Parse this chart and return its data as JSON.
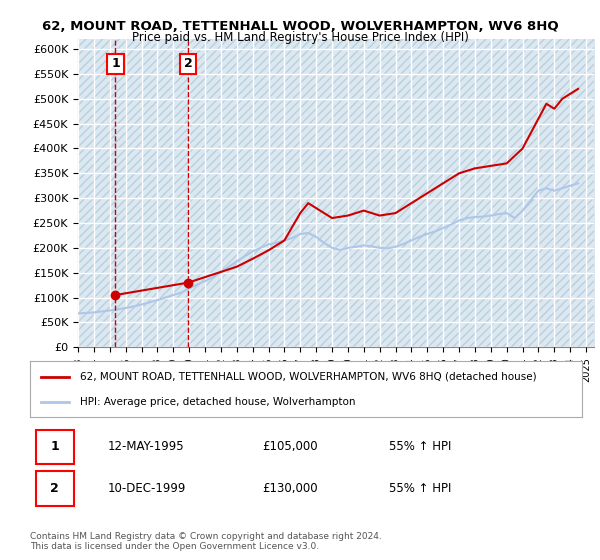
{
  "title": "62, MOUNT ROAD, TETTENHALL WOOD, WOLVERHAMPTON, WV6 8HQ",
  "subtitle": "Price paid vs. HM Land Registry's House Price Index (HPI)",
  "ylabel": "",
  "ylim": [
    0,
    620000
  ],
  "yticks": [
    0,
    50000,
    100000,
    150000,
    200000,
    250000,
    300000,
    350000,
    400000,
    450000,
    500000,
    550000,
    600000
  ],
  "ytick_labels": [
    "£0",
    "£50K",
    "£100K",
    "£150K",
    "£200K",
    "£250K",
    "£300K",
    "£350K",
    "£400K",
    "£450K",
    "£500K",
    "£550K",
    "£600K"
  ],
  "xlim_start": 1993.0,
  "xlim_end": 2025.5,
  "xticks": [
    1993,
    1994,
    1995,
    1996,
    1997,
    1998,
    1999,
    2000,
    2001,
    2002,
    2003,
    2004,
    2005,
    2006,
    2007,
    2008,
    2009,
    2010,
    2011,
    2012,
    2013,
    2014,
    2015,
    2016,
    2017,
    2018,
    2019,
    2020,
    2021,
    2022,
    2023,
    2024,
    2025
  ],
  "hpi_color": "#aec6e8",
  "property_color": "#cc0000",
  "sale1_x": 1995.36,
  "sale1_y": 105000,
  "sale1_label": "1",
  "sale2_x": 1999.94,
  "sale2_y": 130000,
  "sale2_label": "2",
  "legend_property": "62, MOUNT ROAD, TETTENHALL WOOD, WOLVERHAMPTON, WV6 8HQ (detached house)",
  "legend_hpi": "HPI: Average price, detached house, Wolverhampton",
  "table_row1": [
    "1",
    "12-MAY-1995",
    "£105,000",
    "55% ↑ HPI"
  ],
  "table_row2": [
    "2",
    "10-DEC-1999",
    "£130,000",
    "55% ↑ HPI"
  ],
  "footnote": "Contains HM Land Registry data © Crown copyright and database right 2024.\nThis data is licensed under the Open Government Licence v3.0.",
  "bg_color": "#ffffff",
  "plot_bg_color": "#f0f4f8",
  "hatch_color": "#c8d8e8",
  "grid_color": "#ffffff",
  "hpi_line": {
    "x": [
      1993.0,
      1993.5,
      1994.0,
      1994.5,
      1995.0,
      1995.5,
      1996.0,
      1996.5,
      1997.0,
      1997.5,
      1998.0,
      1998.5,
      1999.0,
      1999.5,
      2000.0,
      2000.5,
      2001.0,
      2001.5,
      2002.0,
      2002.5,
      2003.0,
      2003.5,
      2004.0,
      2004.5,
      2005.0,
      2005.5,
      2006.0,
      2006.5,
      2007.0,
      2007.5,
      2008.0,
      2008.5,
      2009.0,
      2009.5,
      2010.0,
      2010.5,
      2011.0,
      2011.5,
      2012.0,
      2012.5,
      2013.0,
      2013.5,
      2014.0,
      2014.5,
      2015.0,
      2015.5,
      2016.0,
      2016.5,
      2017.0,
      2017.5,
      2018.0,
      2018.5,
      2019.0,
      2019.5,
      2020.0,
      2020.5,
      2021.0,
      2021.5,
      2022.0,
      2022.5,
      2023.0,
      2023.5,
      2024.0,
      2024.5
    ],
    "y": [
      68000,
      69000,
      70000,
      72000,
      74000,
      76000,
      79000,
      82000,
      86000,
      90000,
      95000,
      100000,
      105000,
      110000,
      118000,
      126000,
      133000,
      141000,
      151000,
      162000,
      173000,
      183000,
      193000,
      200000,
      207000,
      210000,
      215000,
      220000,
      228000,
      230000,
      222000,
      210000,
      200000,
      196000,
      200000,
      202000,
      205000,
      203000,
      200000,
      199000,
      202000,
      208000,
      215000,
      222000,
      228000,
      233000,
      240000,
      247000,
      255000,
      260000,
      262000,
      263000,
      265000,
      268000,
      270000,
      260000,
      275000,
      295000,
      315000,
      320000,
      315000,
      320000,
      325000,
      330000
    ]
  },
  "property_line": {
    "x": [
      1995.36,
      1999.94,
      2003.0,
      2004.0,
      2005.0,
      2006.0,
      2007.0,
      2007.5,
      2008.0,
      2009.0,
      2010.0,
      2011.0,
      2012.0,
      2013.0,
      2014.0,
      2015.0,
      2016.0,
      2017.0,
      2018.0,
      2019.0,
      2020.0,
      2021.0,
      2022.0,
      2022.5,
      2023.0,
      2023.5,
      2024.0,
      2024.5
    ],
    "y": [
      105000,
      130000,
      162000,
      178000,
      195000,
      215000,
      270000,
      290000,
      280000,
      260000,
      265000,
      275000,
      265000,
      270000,
      290000,
      310000,
      330000,
      350000,
      360000,
      365000,
      370000,
      400000,
      460000,
      490000,
      480000,
      500000,
      510000,
      520000
    ]
  }
}
